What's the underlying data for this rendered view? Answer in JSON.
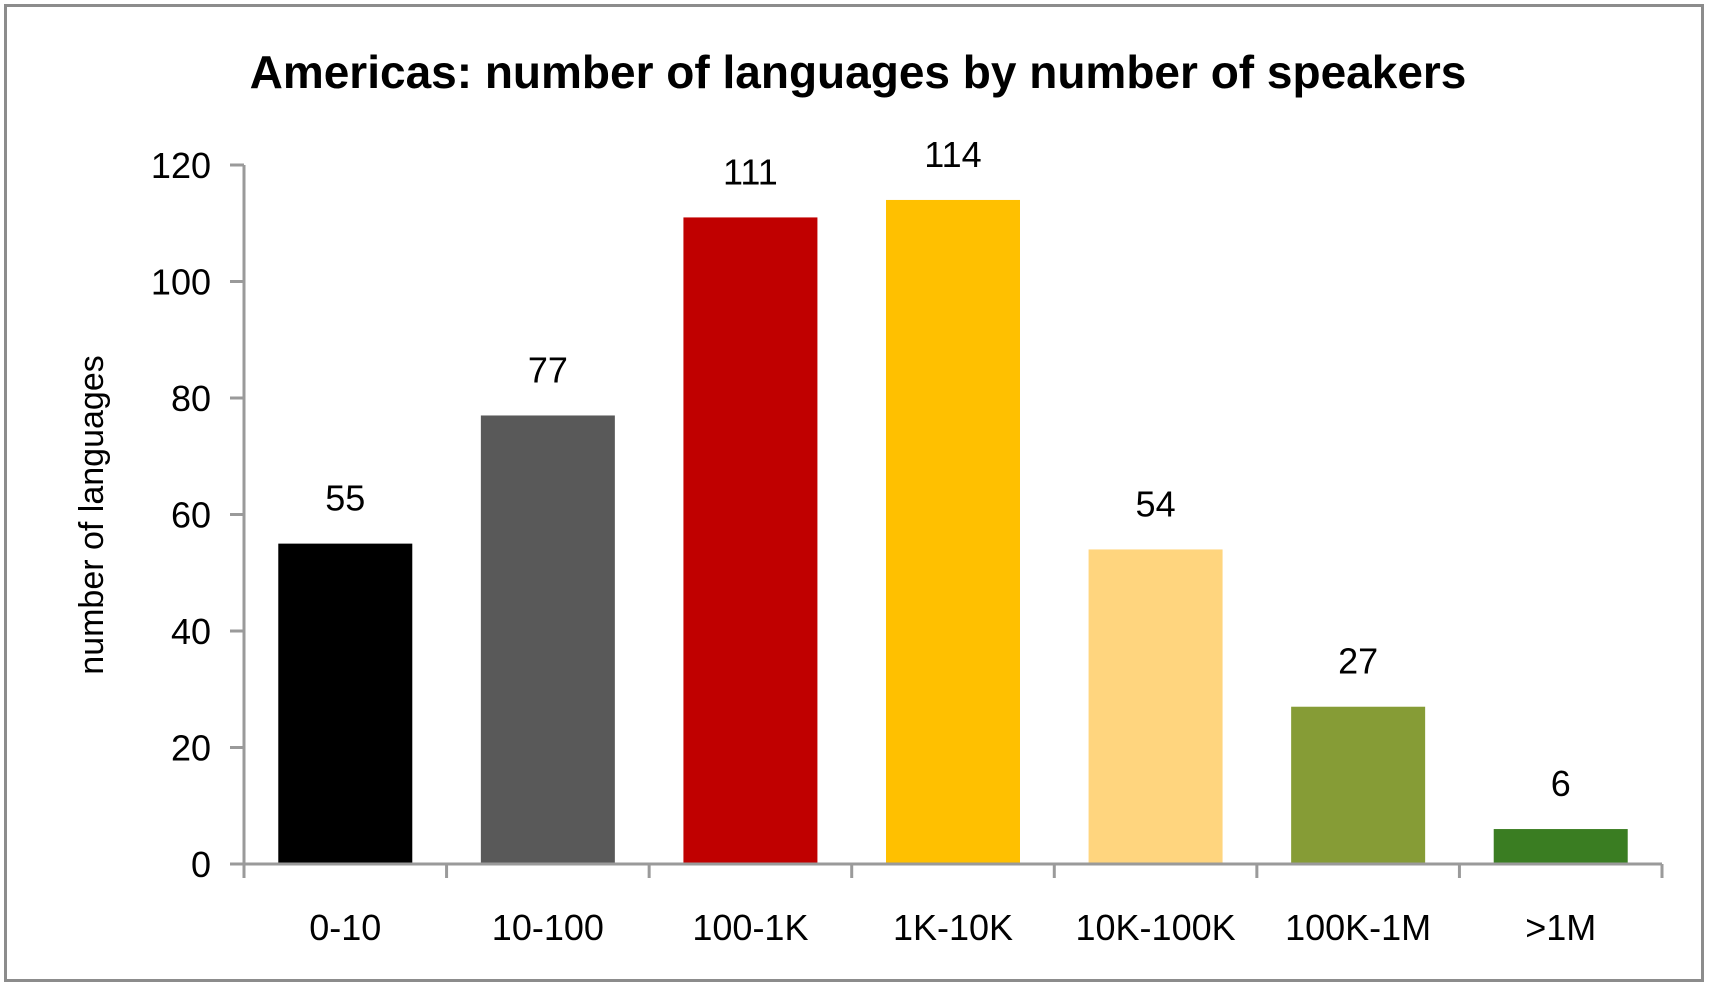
{
  "chart_data": {
    "type": "bar",
    "title": "Americas: number of languages by number of speakers",
    "xlabel": "",
    "ylabel": "number of languages",
    "categories": [
      "0-10",
      "10-100",
      "100-1K",
      "1K-10K",
      "10K-100K",
      "100K-1M",
      ">1M"
    ],
    "values": [
      55,
      77,
      111,
      114,
      54,
      27,
      6
    ],
    "data_labels": [
      "55",
      "77",
      "111",
      "114",
      "54",
      "27",
      "6"
    ],
    "colors": [
      "#000000",
      "#595959",
      "#c00000",
      "#ffc000",
      "#ffd57e",
      "#869c36",
      "#3a7d22"
    ],
    "ylim": [
      0,
      120
    ],
    "yticks": [
      "0",
      "20",
      "40",
      "60",
      "80",
      "100",
      "120"
    ],
    "grid": false,
    "legend": "none"
  }
}
